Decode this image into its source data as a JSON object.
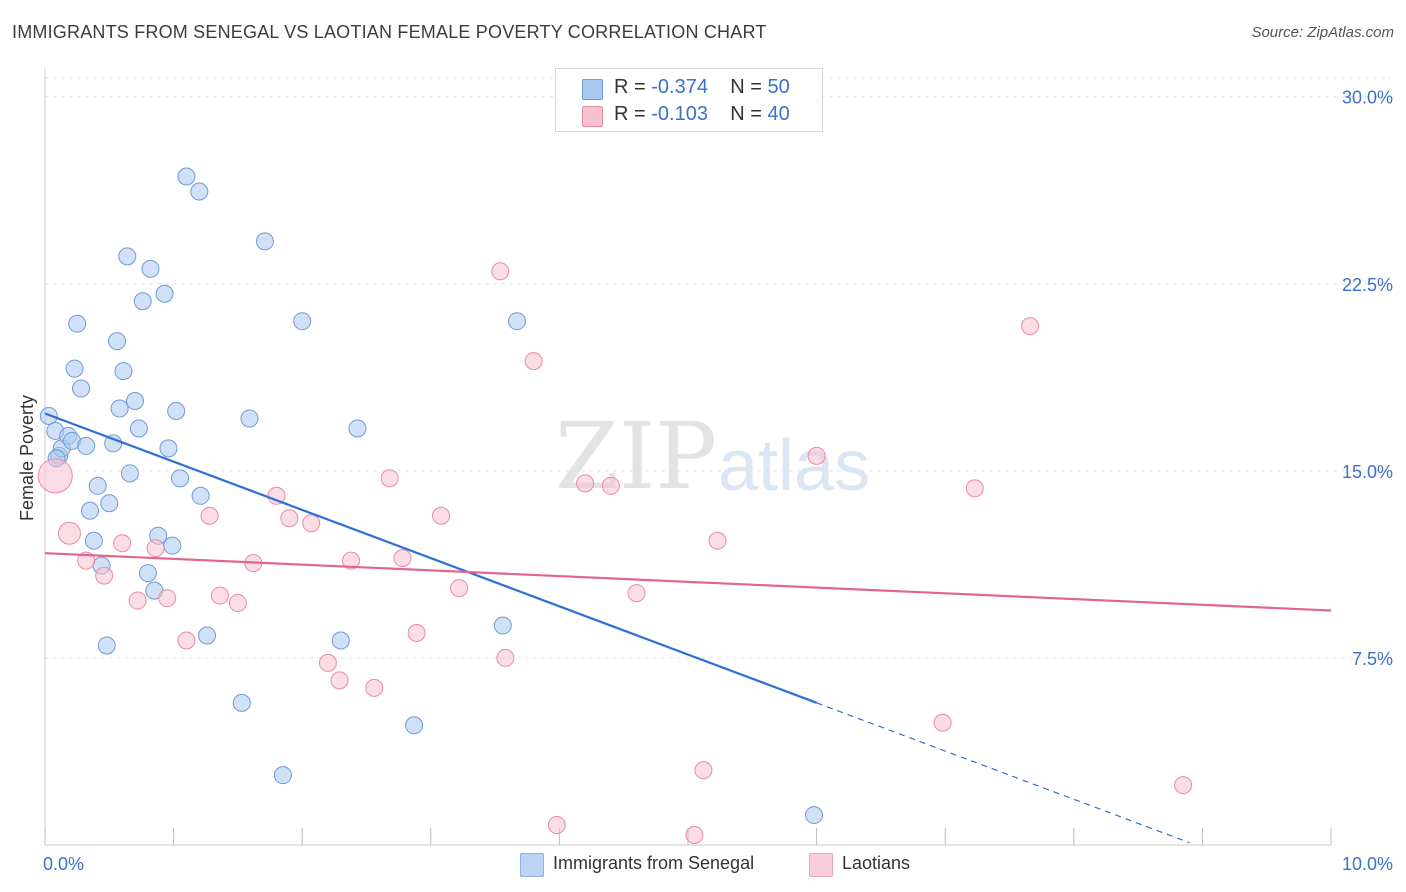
{
  "title": "IMMIGRANTS FROM SENEGAL VS LAOTIAN FEMALE POVERTY CORRELATION CHART",
  "source": "Source: ZipAtlas.com",
  "watermark": {
    "zip": "ZIP",
    "atlas": "atlas"
  },
  "legend": {
    "rows": [
      {
        "r_label": "R = ",
        "r_value": "-0.374",
        "n_label": "N = ",
        "n_value": "50",
        "color": "#a9c8f0",
        "border": "#6f9bd6"
      },
      {
        "r_label": "R = ",
        "r_value": "-0.103",
        "n_label": "N = ",
        "n_value": "40",
        "color": "#f7c1d0",
        "border": "#e98aa6"
      }
    ]
  },
  "chart_data": {
    "type": "scatter",
    "title": "IMMIGRANTS FROM SENEGAL VS LAOTIAN FEMALE POVERTY CORRELATION CHART",
    "xlabel": "",
    "ylabel": "Female Poverty",
    "xlim": [
      0,
      10
    ],
    "ylim": [
      0,
      30.75
    ],
    "x_tick_labels": [
      "0.0%",
      "10.0%"
    ],
    "y_ticks": [
      7.5,
      15.0,
      22.5,
      30.0
    ],
    "y_tick_labels": [
      "7.5%",
      "15.0%",
      "22.5%",
      "30.0%"
    ],
    "grid": true,
    "series": [
      {
        "name": "Immigrants from Senegal",
        "color": "#a9c8f0",
        "stroke": "#6f9bd6",
        "line_color": "#2f6fd2",
        "trend": {
          "x0": 0,
          "y0": 17.3,
          "x1": 6.0,
          "y1": 5.7,
          "dash_x1": 8.9
        },
        "points": [
          [
            0.03,
            17.2
          ],
          [
            0.08,
            16.6
          ],
          [
            0.11,
            15.6
          ],
          [
            0.13,
            15.9
          ],
          [
            0.18,
            16.4
          ],
          [
            0.21,
            16.2
          ],
          [
            0.23,
            19.1
          ],
          [
            0.25,
            20.9
          ],
          [
            0.28,
            18.3
          ],
          [
            0.32,
            16.0
          ],
          [
            0.35,
            13.4
          ],
          [
            0.38,
            12.2
          ],
          [
            0.41,
            14.4
          ],
          [
            0.44,
            11.2
          ],
          [
            0.48,
            8.0
          ],
          [
            0.5,
            13.7
          ],
          [
            0.53,
            16.1
          ],
          [
            0.56,
            20.2
          ],
          [
            0.58,
            17.5
          ],
          [
            0.61,
            19.0
          ],
          [
            0.64,
            23.6
          ],
          [
            0.66,
            14.9
          ],
          [
            0.7,
            17.8
          ],
          [
            0.73,
            16.7
          ],
          [
            0.76,
            21.8
          ],
          [
            0.8,
            10.9
          ],
          [
            0.82,
            23.1
          ],
          [
            0.85,
            10.2
          ],
          [
            0.88,
            12.4
          ],
          [
            0.93,
            22.1
          ],
          [
            0.96,
            15.9
          ],
          [
            0.99,
            12.0
          ],
          [
            1.02,
            17.4
          ],
          [
            1.05,
            14.7
          ],
          [
            1.1,
            26.8
          ],
          [
            1.2,
            26.2
          ],
          [
            1.21,
            14.0
          ],
          [
            1.26,
            8.4
          ],
          [
            1.53,
            5.7
          ],
          [
            1.59,
            17.1
          ],
          [
            1.71,
            24.2
          ],
          [
            1.85,
            2.8
          ],
          [
            2.0,
            21.0
          ],
          [
            2.3,
            8.2
          ],
          [
            2.43,
            16.7
          ],
          [
            2.87,
            4.8
          ],
          [
            3.56,
            8.8
          ],
          [
            3.67,
            21.0
          ],
          [
            5.98,
            1.2
          ],
          [
            0.09,
            15.5
          ]
        ]
      },
      {
        "name": "Laotians",
        "color": "#f7c1d0",
        "stroke": "#e98aa6",
        "line_color": "#e0668c",
        "trend": {
          "x0": 0,
          "y0": 11.7,
          "x1": 10.0,
          "y1": 9.4
        },
        "points": [
          [
            0.08,
            14.8
          ],
          [
            0.19,
            12.5
          ],
          [
            0.32,
            11.4
          ],
          [
            0.46,
            10.8
          ],
          [
            0.6,
            12.1
          ],
          [
            0.72,
            9.8
          ],
          [
            0.86,
            11.9
          ],
          [
            0.95,
            9.9
          ],
          [
            1.1,
            8.2
          ],
          [
            1.28,
            13.2
          ],
          [
            1.36,
            10.0
          ],
          [
            1.5,
            9.7
          ],
          [
            1.62,
            11.3
          ],
          [
            1.8,
            14.0
          ],
          [
            1.9,
            13.1
          ],
          [
            2.07,
            12.9
          ],
          [
            2.2,
            7.3
          ],
          [
            2.29,
            6.6
          ],
          [
            2.38,
            11.4
          ],
          [
            2.56,
            6.3
          ],
          [
            2.68,
            14.7
          ],
          [
            2.78,
            11.5
          ],
          [
            2.89,
            8.5
          ],
          [
            3.08,
            13.2
          ],
          [
            3.22,
            10.3
          ],
          [
            3.54,
            23.0
          ],
          [
            3.58,
            7.5
          ],
          [
            3.8,
            19.4
          ],
          [
            3.98,
            0.8
          ],
          [
            4.2,
            14.5
          ],
          [
            4.4,
            14.4
          ],
          [
            4.6,
            10.1
          ],
          [
            5.05,
            0.4
          ],
          [
            5.12,
            3.0
          ],
          [
            5.23,
            12.2
          ],
          [
            6.0,
            15.6
          ],
          [
            6.98,
            4.9
          ],
          [
            7.23,
            14.3
          ],
          [
            7.66,
            20.8
          ],
          [
            8.85,
            2.4
          ]
        ]
      }
    ]
  }
}
